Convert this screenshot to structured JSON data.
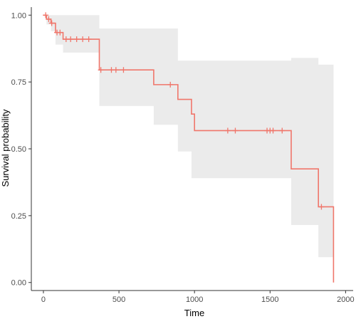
{
  "chart_data": {
    "type": "line",
    "title": "",
    "xlabel": "Time",
    "ylabel": "Survival probability",
    "xlim": [
      -80,
      2050
    ],
    "ylim": [
      -0.03,
      1.03
    ],
    "x_ticks": [
      0,
      500,
      1000,
      1500,
      2000
    ],
    "x_tick_labels": [
      "0",
      "500",
      "1000",
      "1500",
      "2000"
    ],
    "y_ticks": [
      0,
      0.25,
      0.5,
      0.75,
      1
    ],
    "y_tick_labels": [
      "0.00",
      "0.25",
      "0.50",
      "0.75",
      "1.00"
    ],
    "grid": false,
    "legend": "none",
    "colors": {
      "line": "#f0766b",
      "ribbon": "#ebebeb",
      "axis": "#333333"
    },
    "survival_steps": [
      [
        0,
        1.0
      ],
      [
        20,
        0.985
      ],
      [
        50,
        0.97
      ],
      [
        80,
        0.935
      ],
      [
        130,
        0.91
      ],
      [
        370,
        0.795
      ],
      [
        730,
        0.74
      ],
      [
        890,
        0.685
      ],
      [
        980,
        0.63
      ],
      [
        1000,
        0.568
      ],
      [
        1640,
        0.425
      ],
      [
        1820,
        0.283
      ],
      [
        1920,
        0.0
      ]
    ],
    "confidence_band": [
      [
        0,
        1.0,
        1.0
      ],
      [
        20,
        0.965,
        1.0
      ],
      [
        50,
        0.94,
        1.0
      ],
      [
        80,
        0.89,
        1.0
      ],
      [
        130,
        0.86,
        1.0
      ],
      [
        370,
        0.66,
        0.95
      ],
      [
        730,
        0.59,
        0.95
      ],
      [
        890,
        0.49,
        0.83
      ],
      [
        980,
        0.39,
        0.83
      ],
      [
        1000,
        0.39,
        0.83
      ],
      [
        1640,
        0.215,
        0.84
      ],
      [
        1820,
        0.095,
        0.815
      ],
      [
        1920,
        0.095,
        0.815
      ]
    ],
    "censored_times": [
      15,
      35,
      55,
      90,
      110,
      150,
      180,
      220,
      260,
      300,
      380,
      450,
      480,
      530,
      840,
      1220,
      1270,
      1480,
      1500,
      1520,
      1580,
      1840
    ]
  }
}
